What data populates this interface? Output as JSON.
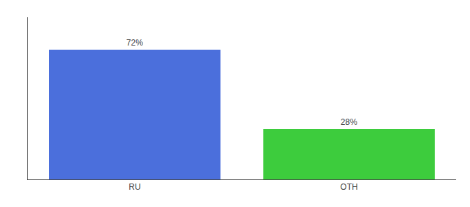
{
  "chart_data": {
    "type": "bar",
    "categories": [
      "RU",
      "OTH"
    ],
    "values": [
      72,
      28
    ],
    "value_labels": [
      "72%",
      "28%"
    ],
    "colors": [
      "#4b6fdc",
      "#3dcc3d"
    ],
    "ylim": [
      0,
      90
    ],
    "data_labels": true,
    "tick_labels": "x",
    "grid": false
  }
}
